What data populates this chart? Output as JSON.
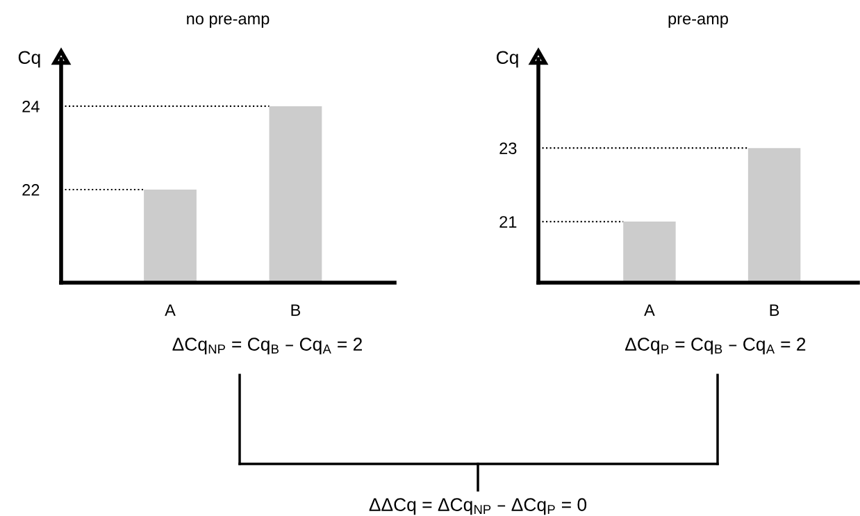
{
  "chart_data": [
    {
      "type": "bar",
      "title": "no pre-amp",
      "ylabel": "Cq",
      "categories": [
        "A",
        "B"
      ],
      "values": [
        22,
        24
      ],
      "color": "#cccccc",
      "ylim": [
        19.77,
        25.13
      ],
      "yticks": [
        22,
        24
      ],
      "grid": false,
      "ref_lines": [
        {
          "axis": "y",
          "value": 22,
          "color": "#000000",
          "line_style": "dotted"
        },
        {
          "axis": "y",
          "value": 24,
          "color": "#000000",
          "line_style": "dotted"
        }
      ],
      "annotations": [
        "ΔCq$_{NP}$ = Cq$_{B}$ – Cq$_{A}$ = 2"
      ]
    },
    {
      "type": "bar",
      "title": "pre-amp",
      "ylabel": "Cq",
      "categories": [
        "A",
        "B"
      ],
      "values": [
        21,
        23
      ],
      "color": "#cccccc",
      "ylim": [
        19.34,
        25.42
      ],
      "yticks": [
        21,
        23
      ],
      "grid": false,
      "ref_lines": [
        {
          "axis": "y",
          "value": 21,
          "color": "#000000",
          "line_style": "dotted"
        },
        {
          "axis": "y",
          "value": 23,
          "color": "#000000",
          "line_style": "dotted"
        }
      ],
      "annotations": [
        "ΔCq$_{P}$ = Cq$_{B}$ – Cq$_{A}$ = 2",
        "ΔΔCq = ΔCq$_{NP}$ – ΔCq$_{P}$ = 0"
      ]
    }
  ]
}
